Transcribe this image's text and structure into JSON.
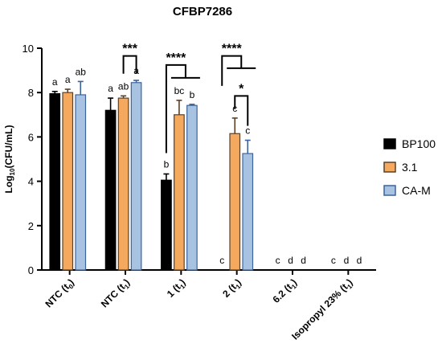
{
  "chart_data": {
    "type": "bar",
    "title": "CFBP7286",
    "ylabel": {
      "pre": "Log",
      "sub": "10",
      "post": "(CFU/mL)"
    },
    "ylim": [
      0,
      10
    ],
    "yticks": [
      0,
      2,
      4,
      6,
      8,
      10
    ],
    "grid": false,
    "legend_position": "right",
    "categories": [
      {
        "main": "NTC (t",
        "sub": "0",
        "post": ")"
      },
      {
        "main": "NTC (t",
        "sub": "1",
        "post": ")"
      },
      {
        "main": "1 (t",
        "sub": "1",
        "post": ")"
      },
      {
        "main": "2 (t",
        "sub": "1",
        "post": ")"
      },
      {
        "main": "6.2 (t",
        "sub": "1",
        "post": ")"
      },
      {
        "main": "Isopropyl 23% (t",
        "sub": "1",
        "post": ")"
      }
    ],
    "series": [
      {
        "name": "BP100",
        "color": "#000000",
        "edge": "#000000",
        "values": [
          7.95,
          7.2,
          4.05,
          0,
          0,
          0
        ],
        "errors": [
          0.1,
          0.55,
          0.28,
          0,
          0,
          0
        ],
        "letters": [
          "a",
          "a",
          "b",
          "c",
          "c",
          "c"
        ]
      },
      {
        "name": "3.1",
        "color": "#f4a95f",
        "edge": "#5a4128",
        "values": [
          8.0,
          7.75,
          7.0,
          6.15,
          0,
          0
        ],
        "errors": [
          0.15,
          0.1,
          0.65,
          0.7,
          0,
          0
        ],
        "letters": [
          "a",
          "ab",
          "bc",
          "c",
          "d",
          "d"
        ]
      },
      {
        "name": "CA-M",
        "color": "#a8c3e2",
        "edge": "#3c639c",
        "values": [
          7.9,
          8.45,
          7.42,
          5.25,
          0,
          0
        ],
        "errors": [
          0.6,
          0.1,
          0.05,
          0.6,
          0,
          0
        ],
        "letters": [
          "ab",
          "a",
          "b",
          "c",
          "d",
          "d"
        ]
      }
    ],
    "significance": [
      {
        "label": "***",
        "category": 1,
        "from_series": 1,
        "to_series": 2
      },
      {
        "label": "****",
        "category": 2,
        "from_series": 0,
        "to_series": [
          1,
          2
        ]
      },
      {
        "label": "****",
        "category": 3,
        "from_series": 0,
        "to_series": [
          1,
          2
        ]
      },
      {
        "label": "*",
        "category": 3,
        "from_series": 1,
        "to_series": 2
      }
    ]
  }
}
